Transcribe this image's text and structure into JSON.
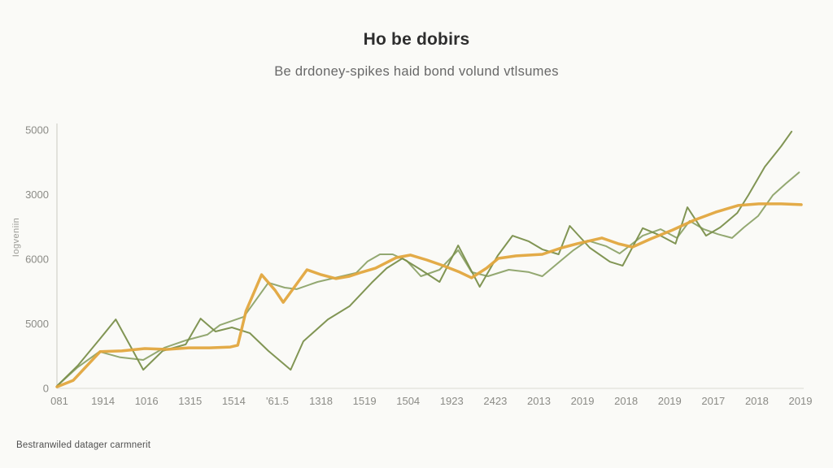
{
  "page": {
    "background": "#fafaf7"
  },
  "header": {
    "title": "Ho be dobirs",
    "subtitle": "Be drdoney-spikes haid bond volund vtlsumes"
  },
  "footer": {
    "caption": "Bestranwiled datager carmnerit"
  },
  "chart_data": {
    "type": "line",
    "title": "Ho be dobirs",
    "subtitle": "Be drdoney-spikes haid bond volund vtlsumes",
    "ylabel": "Iogveniin",
    "grid": false,
    "legend": "none",
    "axis_color": "#d9d9d3",
    "tick_label_color": "#8b8b86",
    "ylim": [
      0,
      1000
    ],
    "y_tick_labels": [
      "0",
      "5000",
      "6000",
      "3000",
      "5000"
    ],
    "x_tick_labels": [
      "081",
      "1914",
      "1016",
      "1315",
      "1514",
      "'61.5",
      "1318",
      "1519",
      "1504",
      "1923",
      "2423",
      "2013",
      "2019",
      "2018",
      "2019",
      "2017",
      "2018",
      "2019"
    ],
    "series": [
      {
        "name": "green-line-2",
        "color": "#8da369",
        "stroke_width": 2,
        "points": [
          [
            0.0,
            9
          ],
          [
            0.028,
            82
          ],
          [
            0.057,
            142
          ],
          [
            0.085,
            120
          ],
          [
            0.116,
            110
          ],
          [
            0.144,
            157
          ],
          [
            0.173,
            186
          ],
          [
            0.202,
            208
          ],
          [
            0.219,
            245
          ],
          [
            0.251,
            277
          ],
          [
            0.284,
            409
          ],
          [
            0.306,
            390
          ],
          [
            0.322,
            384
          ],
          [
            0.35,
            412
          ],
          [
            0.374,
            428
          ],
          [
            0.402,
            447
          ],
          [
            0.417,
            491
          ],
          [
            0.434,
            519
          ],
          [
            0.451,
            519
          ],
          [
            0.47,
            494
          ],
          [
            0.489,
            434
          ],
          [
            0.514,
            459
          ],
          [
            0.539,
            535
          ],
          [
            0.557,
            450
          ],
          [
            0.579,
            434
          ],
          [
            0.607,
            459
          ],
          [
            0.634,
            450
          ],
          [
            0.652,
            434
          ],
          [
            0.678,
            497
          ],
          [
            0.694,
            535
          ],
          [
            0.713,
            572
          ],
          [
            0.738,
            550
          ],
          [
            0.756,
            522
          ],
          [
            0.787,
            591
          ],
          [
            0.811,
            616
          ],
          [
            0.833,
            582
          ],
          [
            0.85,
            648
          ],
          [
            0.869,
            616
          ],
          [
            0.888,
            597
          ],
          [
            0.907,
            582
          ],
          [
            0.923,
            623
          ],
          [
            0.942,
            667
          ],
          [
            0.962,
            748
          ],
          [
            0.979,
            792
          ],
          [
            0.997,
            836
          ]
        ]
      },
      {
        "name": "green-line-1",
        "color": "#7a8f4b",
        "stroke_width": 2,
        "points": [
          [
            0.0,
            9
          ],
          [
            0.028,
            88
          ],
          [
            0.057,
            189
          ],
          [
            0.079,
            267
          ],
          [
            0.098,
            167
          ],
          [
            0.116,
            72
          ],
          [
            0.142,
            145
          ],
          [
            0.173,
            170
          ],
          [
            0.193,
            270
          ],
          [
            0.213,
            220
          ],
          [
            0.235,
            236
          ],
          [
            0.259,
            214
          ],
          [
            0.284,
            145
          ],
          [
            0.314,
            72
          ],
          [
            0.331,
            182
          ],
          [
            0.364,
            267
          ],
          [
            0.393,
            318
          ],
          [
            0.423,
            409
          ],
          [
            0.443,
            465
          ],
          [
            0.464,
            503
          ],
          [
            0.489,
            459
          ],
          [
            0.514,
            412
          ],
          [
            0.539,
            553
          ],
          [
            0.568,
            393
          ],
          [
            0.592,
            513
          ],
          [
            0.612,
            591
          ],
          [
            0.634,
            569
          ],
          [
            0.652,
            538
          ],
          [
            0.674,
            519
          ],
          [
            0.689,
            629
          ],
          [
            0.716,
            544
          ],
          [
            0.743,
            490
          ],
          [
            0.76,
            475
          ],
          [
            0.787,
            620
          ],
          [
            0.811,
            591
          ],
          [
            0.831,
            560
          ],
          [
            0.847,
            701
          ],
          [
            0.872,
            591
          ],
          [
            0.891,
            623
          ],
          [
            0.914,
            679
          ],
          [
            0.929,
            748
          ],
          [
            0.951,
            858
          ],
          [
            0.973,
            937
          ],
          [
            0.987,
            994
          ]
        ]
      },
      {
        "name": "orange-line",
        "color": "#e2a63e",
        "stroke_width": 3.5,
        "points": [
          [
            0.0,
            6
          ],
          [
            0.022,
            31
          ],
          [
            0.058,
            142
          ],
          [
            0.087,
            145
          ],
          [
            0.118,
            154
          ],
          [
            0.148,
            151
          ],
          [
            0.177,
            157
          ],
          [
            0.205,
            157
          ],
          [
            0.233,
            160
          ],
          [
            0.243,
            167
          ],
          [
            0.254,
            299
          ],
          [
            0.275,
            440
          ],
          [
            0.293,
            380
          ],
          [
            0.304,
            333
          ],
          [
            0.336,
            459
          ],
          [
            0.355,
            440
          ],
          [
            0.375,
            425
          ],
          [
            0.393,
            434
          ],
          [
            0.41,
            450
          ],
          [
            0.428,
            465
          ],
          [
            0.456,
            506
          ],
          [
            0.475,
            516
          ],
          [
            0.497,
            497
          ],
          [
            0.519,
            475
          ],
          [
            0.541,
            450
          ],
          [
            0.557,
            428
          ],
          [
            0.577,
            465
          ],
          [
            0.593,
            503
          ],
          [
            0.617,
            513
          ],
          [
            0.652,
            519
          ],
          [
            0.678,
            544
          ],
          [
            0.699,
            560
          ],
          [
            0.732,
            582
          ],
          [
            0.754,
            560
          ],
          [
            0.773,
            547
          ],
          [
            0.798,
            579
          ],
          [
            0.827,
            613
          ],
          [
            0.856,
            651
          ],
          [
            0.885,
            682
          ],
          [
            0.915,
            708
          ],
          [
            0.943,
            714
          ],
          [
            0.973,
            714
          ],
          [
            1.0,
            711
          ]
        ]
      }
    ]
  }
}
